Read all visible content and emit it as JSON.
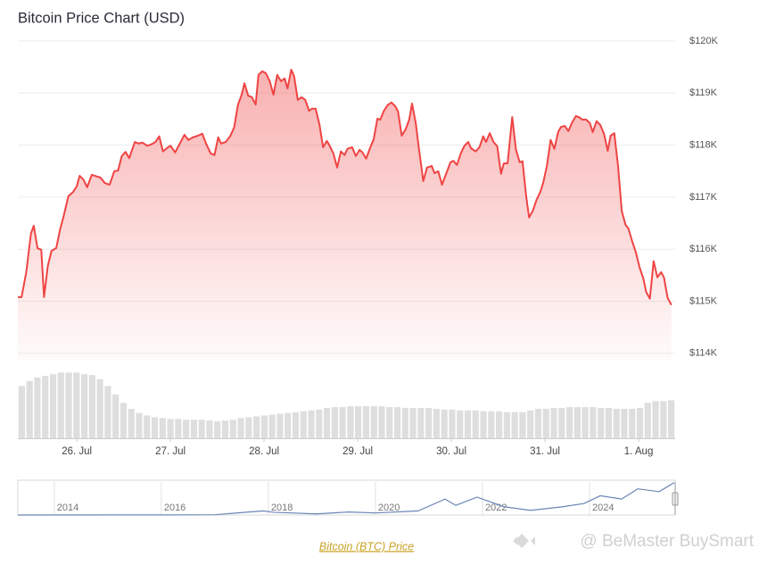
{
  "chart_data": [
    {
      "type": "line",
      "title": "Bitcoin Price Chart (USD)",
      "color": "#ef4444",
      "y_axis_side": "right",
      "grid": true,
      "xlim": [
        25.37,
        32.39
      ],
      "xticks": [
        {
          "value": 26,
          "label": "26. Jul"
        },
        {
          "value": 27,
          "label": "27. Jul"
        },
        {
          "value": 28,
          "label": "28. Jul"
        },
        {
          "value": 29,
          "label": "29. Jul"
        },
        {
          "value": 30,
          "label": "30. Jul"
        },
        {
          "value": 31,
          "label": "31. Jul"
        },
        {
          "value": 32,
          "label": "1. Aug"
        }
      ],
      "ylim": [
        113860,
        120000
      ],
      "yticks": [
        {
          "value": 114000,
          "label": "$114K"
        },
        {
          "value": 115000,
          "label": "$115K"
        },
        {
          "value": 116000,
          "label": "$116K"
        },
        {
          "value": 117000,
          "label": "$117K"
        },
        {
          "value": 118000,
          "label": "$118K"
        },
        {
          "value": 119000,
          "label": "$119K"
        },
        {
          "value": 120000,
          "label": "$120K"
        }
      ],
      "x": [
        25.37,
        25.41,
        25.46,
        25.51,
        25.54,
        25.58,
        25.62,
        25.65,
        25.69,
        25.73,
        25.78,
        25.82,
        25.86,
        25.91,
        25.96,
        26.0,
        26.03,
        26.07,
        26.11,
        26.16,
        26.21,
        26.25,
        26.3,
        26.35,
        26.4,
        26.44,
        26.48,
        26.52,
        26.56,
        26.59,
        26.62,
        26.66,
        26.7,
        26.75,
        26.79,
        26.84,
        26.88,
        26.92,
        26.96,
        27.0,
        27.05,
        27.1,
        27.15,
        27.19,
        27.24,
        27.29,
        27.34,
        27.38,
        27.43,
        27.47,
        27.51,
        27.54,
        27.59,
        27.64,
        27.68,
        27.72,
        27.76,
        27.79,
        27.83,
        27.87,
        27.91,
        27.94,
        27.98,
        28.02,
        28.06,
        28.1,
        28.14,
        28.18,
        28.22,
        28.25,
        28.29,
        28.32,
        28.36,
        28.4,
        28.44,
        28.48,
        28.51,
        28.55,
        28.59,
        28.63,
        28.67,
        28.7,
        28.74,
        28.78,
        28.82,
        28.86,
        28.89,
        28.94,
        28.98,
        29.02,
        29.05,
        29.09,
        29.13,
        29.17,
        29.21,
        29.24,
        29.28,
        29.32,
        29.36,
        29.4,
        29.43,
        29.47,
        29.51,
        29.55,
        29.58,
        29.62,
        29.65,
        29.7,
        29.74,
        29.79,
        29.82,
        29.86,
        29.9,
        29.94,
        29.99,
        30.02,
        30.06,
        30.1,
        30.14,
        30.18,
        30.21,
        30.26,
        30.3,
        30.34,
        30.37,
        30.41,
        30.45,
        30.49,
        30.53,
        30.56,
        30.6,
        30.65,
        30.69,
        30.73,
        30.76,
        30.8,
        30.83,
        30.87,
        30.91,
        30.95,
        30.98,
        31.02,
        31.06,
        31.1,
        31.14,
        31.17,
        31.21,
        31.25,
        31.29,
        31.33,
        31.36,
        31.4,
        31.44,
        31.48,
        31.51,
        31.55,
        31.59,
        31.63,
        31.67,
        31.7,
        31.74,
        31.78,
        31.82,
        31.86,
        31.89,
        31.93,
        31.97,
        32.01,
        32.05,
        32.08,
        32.12,
        32.16,
        32.2,
        32.24,
        32.27,
        32.31,
        32.35
      ],
      "values": [
        115080,
        115080,
        115560,
        116300,
        116450,
        116020,
        115990,
        115080,
        115680,
        115970,
        116020,
        116370,
        116640,
        117020,
        117100,
        117210,
        117410,
        117340,
        117190,
        117430,
        117400,
        117380,
        117270,
        117240,
        117500,
        117510,
        117790,
        117870,
        117750,
        117910,
        118060,
        118030,
        118050,
        117990,
        118010,
        118060,
        118170,
        117880,
        117940,
        117990,
        117860,
        118030,
        118200,
        118100,
        118150,
        118180,
        118220,
        118030,
        117840,
        117810,
        118150,
        118030,
        118060,
        118180,
        118340,
        118770,
        118970,
        119190,
        118950,
        118920,
        118780,
        119350,
        119420,
        119380,
        119230,
        118970,
        119350,
        119230,
        119280,
        119090,
        119450,
        119330,
        118870,
        118920,
        118870,
        118660,
        118700,
        118700,
        118410,
        117960,
        118080,
        117990,
        117840,
        117570,
        117880,
        117810,
        117930,
        117960,
        117790,
        117910,
        117860,
        117740,
        117940,
        118110,
        118510,
        118490,
        118660,
        118770,
        118820,
        118750,
        118650,
        118180,
        118300,
        118490,
        118800,
        118420,
        117980,
        117310,
        117570,
        117600,
        117460,
        117500,
        117240,
        117430,
        117670,
        117700,
        117620,
        117840,
        117990,
        118060,
        117940,
        117880,
        117960,
        118170,
        118060,
        118230,
        118060,
        117980,
        117450,
        117650,
        117650,
        118540,
        117910,
        117670,
        117690,
        117000,
        116610,
        116740,
        116950,
        117100,
        117270,
        117600,
        118100,
        117930,
        118250,
        118350,
        118370,
        118270,
        118440,
        118560,
        118540,
        118490,
        118490,
        118420,
        118250,
        118460,
        118390,
        118220,
        117890,
        118180,
        118230,
        117600,
        116730,
        116470,
        116400,
        116160,
        115940,
        115650,
        115440,
        115180,
        115050,
        115770,
        115460,
        115560,
        115460,
        115060,
        114930
      ],
      "volume": {
        "color": "#dedede",
        "ylim": [
          0,
          90
        ],
        "values": [
          62,
          68,
          72,
          74,
          76,
          78,
          78,
          78,
          76,
          75,
          70,
          62,
          52,
          42,
          35,
          30,
          27,
          25,
          24,
          23,
          23,
          22,
          22,
          22,
          21,
          20,
          21,
          22,
          24,
          25,
          26,
          27,
          28,
          29,
          30,
          31,
          32,
          33,
          34,
          36,
          37,
          37,
          38,
          38,
          38,
          38,
          38,
          37,
          37,
          36,
          36,
          36,
          36,
          35,
          34,
          34,
          33,
          33,
          33,
          32,
          32,
          32,
          31,
          31,
          31,
          33,
          35,
          35,
          36,
          36,
          37,
          37,
          37,
          37,
          36,
          36,
          35,
          35,
          35,
          36,
          42,
          44,
          44,
          45
        ]
      }
    },
    {
      "type": "navigator",
      "color": "#6b85b5",
      "xlim": [
        2013.32,
        2025.6
      ],
      "xticks": [
        2014,
        2016,
        2018,
        2020,
        2022,
        2024
      ],
      "ylim": [
        0,
        120000
      ],
      "x": [
        2013.32,
        2016.0,
        2017.0,
        2017.9,
        2018.1,
        2018.9,
        2019.5,
        2020.0,
        2020.8,
        2021.3,
        2021.5,
        2021.9,
        2022.4,
        2022.9,
        2023.5,
        2023.9,
        2024.2,
        2024.6,
        2024.9,
        2025.3,
        2025.5,
        2025.58
      ],
      "values": [
        100,
        500,
        1000,
        15000,
        10000,
        4000,
        11000,
        7500,
        15000,
        58000,
        35000,
        65000,
        30000,
        17000,
        30000,
        42000,
        70000,
        58000,
        95000,
        85000,
        108000,
        118000
      ]
    }
  ],
  "footer": {
    "link": "Bitcoin (BTC) Price",
    "watermark": "@ BeMaster BuySmart"
  }
}
